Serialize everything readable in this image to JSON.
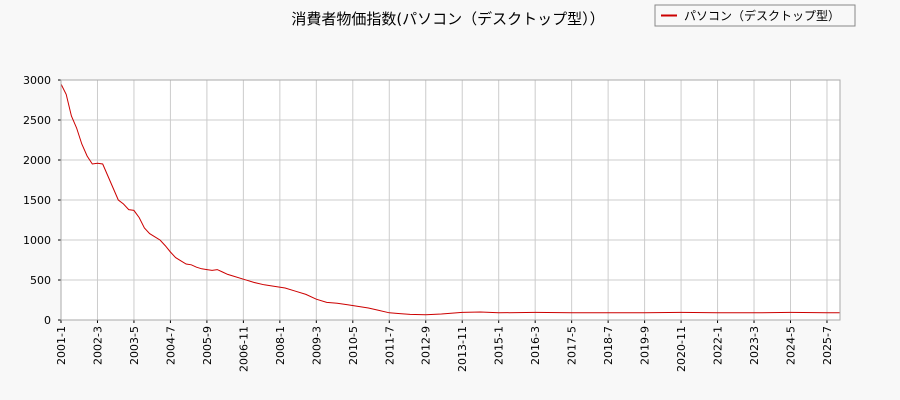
{
  "chart_data": {
    "type": "line",
    "title": "消費者物価指数(パソコン（デスクトップ型））",
    "xlabel": "",
    "ylabel": "",
    "ylim": [
      0,
      3000
    ],
    "yticks": [
      0,
      500,
      1000,
      1500,
      2000,
      2500,
      3000
    ],
    "xticks": [
      "2001-1",
      "2002-3",
      "2003-5",
      "2004-7",
      "2005-9",
      "2006-11",
      "2008-1",
      "2009-3",
      "2010-5",
      "2011-7",
      "2012-9",
      "2013-11",
      "2015-1",
      "2016-3",
      "2017-5",
      "2018-7",
      "2019-9",
      "2020-11",
      "2022-1",
      "2023-3",
      "2024-5",
      "2025-7"
    ],
    "x_start": "2001-1",
    "x_end": "2025-12",
    "grid": true,
    "legend_position": "top-right",
    "series": [
      {
        "name": "パソコン（デスクトップ型）",
        "color": "#cc0000",
        "x": [
          "2001-1",
          "2001-3",
          "2001-5",
          "2001-7",
          "2001-9",
          "2001-11",
          "2002-1",
          "2002-3",
          "2002-5",
          "2002-7",
          "2002-9",
          "2002-11",
          "2003-1",
          "2003-3",
          "2003-5",
          "2003-7",
          "2003-9",
          "2003-11",
          "2004-1",
          "2004-3",
          "2004-5",
          "2004-7",
          "2004-9",
          "2004-11",
          "2005-1",
          "2005-3",
          "2005-5",
          "2005-7",
          "2005-9",
          "2005-11",
          "2006-1",
          "2006-3",
          "2006-5",
          "2006-7",
          "2006-11",
          "2007-3",
          "2007-7",
          "2007-11",
          "2008-3",
          "2008-7",
          "2008-11",
          "2009-3",
          "2009-7",
          "2009-11",
          "2010-3",
          "2010-7",
          "2010-11",
          "2011-3",
          "2011-7",
          "2011-11",
          "2012-3",
          "2012-9",
          "2013-3",
          "2013-11",
          "2014-6",
          "2015-1",
          "2016-3",
          "2017-5",
          "2018-7",
          "2019-9",
          "2020-11",
          "2022-1",
          "2023-3",
          "2024-5",
          "2025-7",
          "2025-12"
        ],
        "y": [
          2950,
          2820,
          2550,
          2400,
          2200,
          2050,
          1950,
          1960,
          1950,
          1800,
          1650,
          1500,
          1450,
          1380,
          1370,
          1280,
          1150,
          1080,
          1040,
          1000,
          930,
          850,
          780,
          740,
          700,
          690,
          660,
          640,
          630,
          620,
          630,
          600,
          570,
          550,
          510,
          470,
          440,
          420,
          400,
          360,
          320,
          260,
          220,
          210,
          190,
          170,
          150,
          120,
          90,
          80,
          70,
          65,
          75,
          95,
          100,
          90,
          95,
          90,
          90,
          90,
          95,
          90,
          90,
          95,
          90,
          90
        ]
      }
    ]
  }
}
